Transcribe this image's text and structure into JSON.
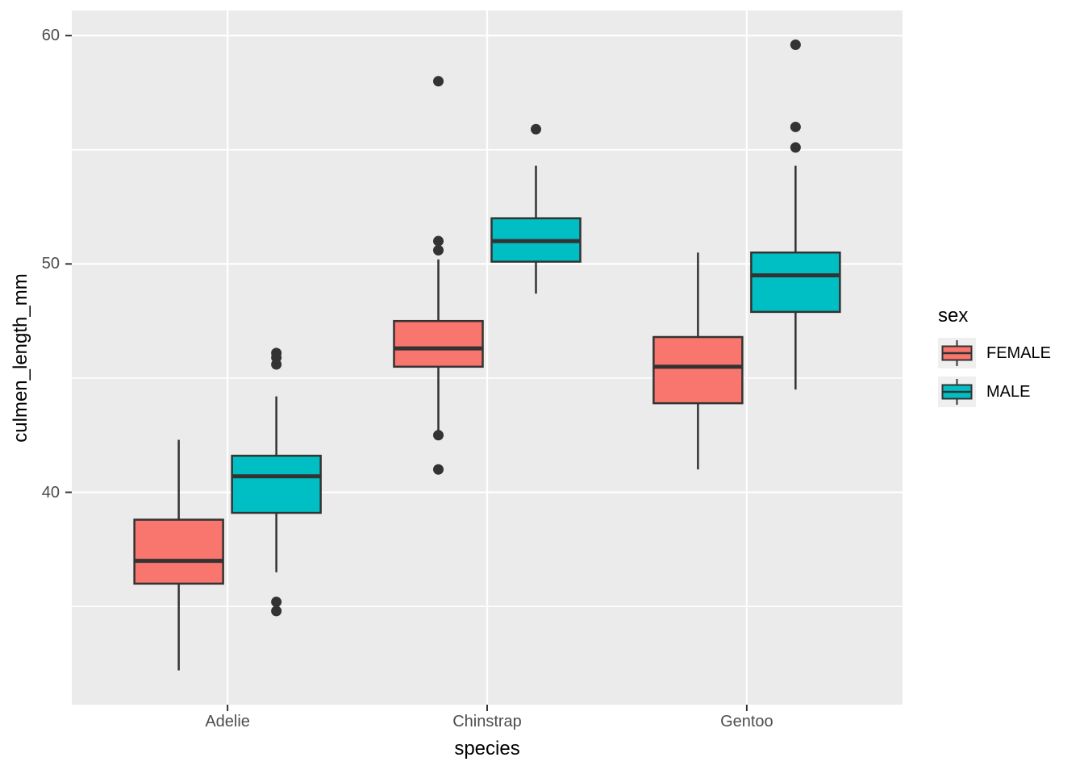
{
  "chart_data": {
    "type": "boxplot",
    "title": "",
    "xlabel": "species",
    "ylabel": "culmen_length_mm",
    "categories": [
      "Adelie",
      "Chinstrap",
      "Gentoo"
    ],
    "y_axis": {
      "ticks": [
        60,
        50,
        40
      ],
      "minor_gridlines": [
        55,
        45,
        35
      ],
      "range": [
        30.7,
        61.1
      ]
    },
    "legend": {
      "title": "sex",
      "position": "right"
    },
    "grid": true,
    "series": [
      {
        "name": "FEMALE",
        "color": "#F8766D",
        "boxes": [
          {
            "category": "Adelie",
            "whisker_low": 32.2,
            "q1": 36.0,
            "median": 37.0,
            "q3": 38.8,
            "whisker_high": 42.3,
            "outliers": []
          },
          {
            "category": "Chinstrap",
            "whisker_low": 42.7,
            "q1": 45.5,
            "median": 46.3,
            "q3": 47.5,
            "whisker_high": 50.2,
            "outliers": [
              58.0,
              51.0,
              50.6,
              42.5,
              41.0
            ]
          },
          {
            "category": "Gentoo",
            "whisker_low": 41.0,
            "q1": 43.9,
            "median": 45.5,
            "q3": 46.8,
            "whisker_high": 50.5,
            "outliers": []
          }
        ]
      },
      {
        "name": "MALE",
        "color": "#00BFC4",
        "boxes": [
          {
            "category": "Adelie",
            "whisker_low": 36.5,
            "q1": 39.1,
            "median": 40.7,
            "q3": 41.6,
            "whisker_high": 44.2,
            "outliers": [
              46.1,
              45.9,
              45.6,
              35.2,
              34.8
            ]
          },
          {
            "category": "Chinstrap",
            "whisker_low": 48.7,
            "q1": 50.1,
            "median": 51.0,
            "q3": 52.0,
            "whisker_high": 54.3,
            "outliers": [
              55.9
            ]
          },
          {
            "category": "Gentoo",
            "whisker_low": 44.5,
            "q1": 47.9,
            "median": 49.5,
            "q3": 50.5,
            "whisker_high": 54.3,
            "outliers": [
              59.6,
              56.0,
              55.1
            ]
          }
        ]
      }
    ],
    "style": {
      "panel_bg": "#EBEBEB",
      "grid_color": "#FFFFFF",
      "box_stroke": "#333333",
      "outlier_color": "#333333",
      "axis_text_color": "#4D4D4D",
      "title_color": "#000000",
      "legend_key_bg": "#EFEFEF"
    }
  }
}
